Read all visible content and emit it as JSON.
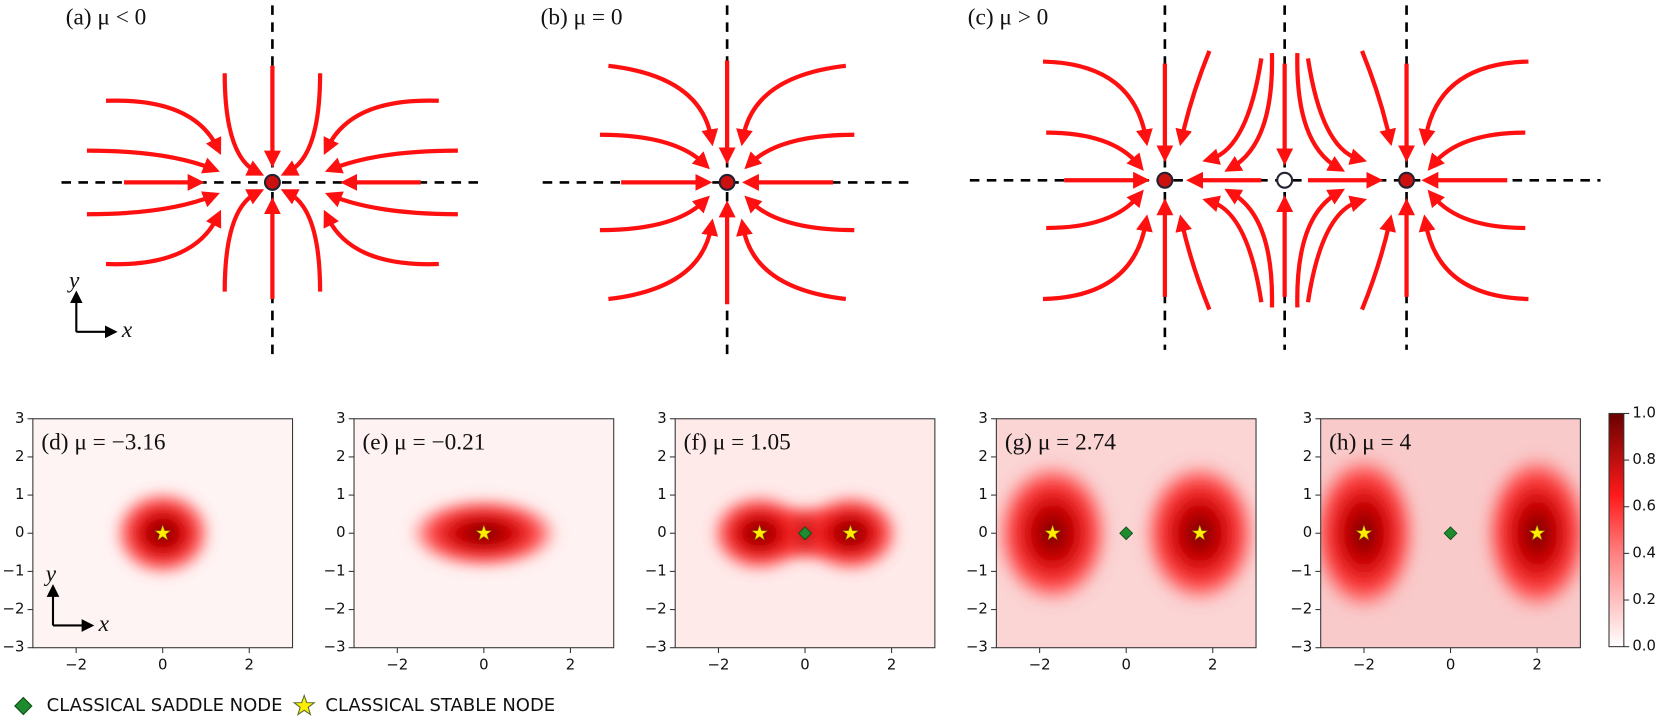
{
  "phase_portraits": [
    {
      "title": "(a)  μ < 0"
    },
    {
      "title": "(b)  μ = 0"
    },
    {
      "title": "(c)  μ > 0"
    }
  ],
  "axis_labels": {
    "x": "x",
    "y": "y"
  },
  "heatmap_axes": {
    "xlim": [
      -3,
      3
    ],
    "ylim": [
      -3,
      3
    ],
    "xticks": [
      {
        "value": -2,
        "label": "−2"
      },
      0,
      2
    ],
    "yticks": [
      {
        "value": -3,
        "label": "−3"
      },
      {
        "value": -2,
        "label": "−2"
      },
      {
        "value": -1,
        "label": "−1"
      },
      0,
      1,
      2,
      3
    ]
  },
  "heatmaps": [
    {
      "title": "(d)  μ = −3.16",
      "stable_x": [
        0
      ],
      "saddle_x": [],
      "background": "#fff4f4"
    },
    {
      "title": "(e)  μ = −0.21",
      "stable_x": [
        0
      ],
      "saddle_x": [],
      "background": "#fff2f2"
    },
    {
      "title": "(f)  μ = 1.05",
      "stable_x": [
        -1.05,
        1.05
      ],
      "saddle_x": [
        0
      ],
      "background": "#ffeaea"
    },
    {
      "title": "(g)  μ = 2.74",
      "stable_x": [
        -1.7,
        1.7
      ],
      "saddle_x": [
        0
      ],
      "background": "#fbd4d4"
    },
    {
      "title": "(h)  μ = 4",
      "stable_x": [
        -2,
        2
      ],
      "saddle_x": [
        0
      ],
      "background": "#f9caca"
    }
  ],
  "colorbar": {
    "lim": [
      0,
      1
    ],
    "ticks": [
      {
        "value": 0,
        "label": "0.0"
      },
      {
        "value": 0.2,
        "label": "0.2"
      },
      {
        "value": 0.4,
        "label": "0.4"
      },
      {
        "value": 0.6,
        "label": "0.6"
      },
      {
        "value": 0.8,
        "label": "0.8"
      },
      {
        "value": 1,
        "label": "1.0"
      }
    ]
  },
  "legend": [
    {
      "name": "CLASSICAL SADDLE NODE",
      "color": "#1e8c2e"
    },
    {
      "name": "CLASSICAL STABLE NODE",
      "color": "#ffee00"
    }
  ]
}
